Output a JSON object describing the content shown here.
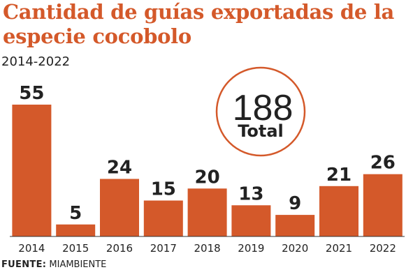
{
  "title": "Cantidad de guías exportadas de la especie cocobolo",
  "subtitle": "2014-2022",
  "total": {
    "value": "188",
    "label": "Total"
  },
  "source": {
    "label": "FUENTE:",
    "text": "MIAMBIENTE"
  },
  "colors": {
    "bar": "#d4592a",
    "title": "#d4592a",
    "circle": "#d4592a",
    "text": "#222222"
  },
  "chart_data": {
    "type": "bar",
    "title": "Cantidad de guías exportadas de la especie cocobolo",
    "subtitle": "2014-2022",
    "categories": [
      "2014",
      "2015",
      "2016",
      "2017",
      "2018",
      "2019",
      "2020",
      "2021",
      "2022"
    ],
    "values": [
      55,
      5,
      24,
      15,
      20,
      13,
      9,
      21,
      26
    ],
    "data_labels": [
      "55",
      "5",
      "24",
      "15",
      "20",
      "13",
      "9",
      "21",
      "26"
    ],
    "xlabel": "",
    "ylabel": "",
    "ylim": [
      0,
      55
    ],
    "grid": false,
    "legend": "none"
  }
}
